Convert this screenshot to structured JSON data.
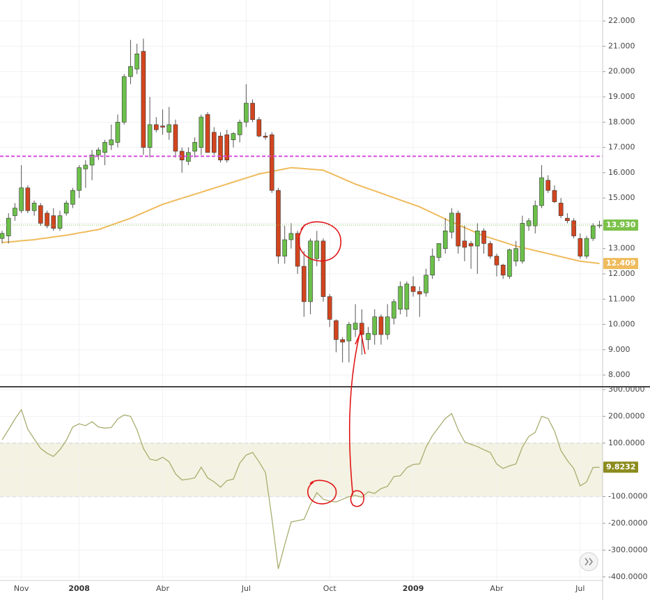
{
  "chart_data": [
    {
      "type": "candlestick",
      "categories": [
        null,
        null,
        null,
        "Nov",
        null,
        null,
        null,
        null,
        null,
        null,
        null,
        null,
        "2008",
        null,
        null,
        null,
        null,
        null,
        null,
        null,
        null,
        null,
        null,
        null,
        null,
        "Abr",
        null,
        null,
        null,
        null,
        null,
        null,
        null,
        null,
        null,
        null,
        null,
        null,
        "Jul",
        null,
        null,
        null,
        null,
        null,
        null,
        null,
        null,
        null,
        null,
        null,
        null,
        "Oct",
        null,
        null,
        null,
        null,
        null,
        null,
        null,
        null,
        null,
        null,
        null,
        null,
        "2009",
        null,
        null,
        null,
        null,
        null,
        null,
        null,
        null,
        null,
        null,
        null,
        null,
        "Abr",
        null,
        null,
        null,
        null,
        null,
        null,
        null,
        null,
        null,
        null,
        null,
        null,
        "Jul",
        null,
        null,
        null
      ],
      "open": [
        13.4,
        13.5,
        14.3,
        14.5,
        15.4,
        14.5,
        14.7,
        14.4,
        14.3,
        13.8,
        14.4,
        14.75,
        15.3,
        16.15,
        16.3,
        16.7,
        16.8,
        17.1,
        17.2,
        18.0,
        19.8,
        20.1,
        20.8,
        17.0,
        17.9,
        17.85,
        17.6,
        17.9,
        16.85,
        16.45,
        16.85,
        17.0,
        18.3,
        17.6,
        17.45,
        17.5,
        17.3,
        17.5,
        18.0,
        18.75,
        18.1,
        17.45,
        17.5,
        15.3,
        12.7,
        13.35,
        13.6,
        12.3,
        10.9,
        12.6,
        13.3,
        11.1,
        10.15,
        9.4,
        9.35,
        9.8,
        10.05,
        9.4,
        9.6,
        10.3,
        9.6,
        10.25,
        10.6,
        10.6,
        11.5,
        11.3,
        11.25,
        11.95,
        12.65,
        13.0,
        13.65,
        14.4,
        13.3,
        13.2,
        13.1,
        13.7,
        13.2,
        12.7,
        12.35,
        11.9,
        12.5,
        12.5,
        13.9,
        13.9,
        14.7,
        15.7,
        15.3,
        14.8,
        14.2,
        14.1,
        13.4,
        12.7,
        13.4,
        13.9
      ],
      "high": [
        13.7,
        14.4,
        14.8,
        16.3,
        15.5,
        14.9,
        14.8,
        14.5,
        14.6,
        14.5,
        14.9,
        15.4,
        16.3,
        16.5,
        16.9,
        17.0,
        17.3,
        17.9,
        18.3,
        19.9,
        21.25,
        21.1,
        21.3,
        19.0,
        18.2,
        18.5,
        18.6,
        18.1,
        17.0,
        17.0,
        17.4,
        18.3,
        18.4,
        17.8,
        17.6,
        17.7,
        17.6,
        18.1,
        19.5,
        18.9,
        18.2,
        17.6,
        17.6,
        15.4,
        13.9,
        14.0,
        13.7,
        12.9,
        13.4,
        13.7,
        13.4,
        11.2,
        10.2,
        9.5,
        10.1,
        10.8,
        10.6,
        9.9,
        10.6,
        10.4,
        10.8,
        11.0,
        11.7,
        11.7,
        11.9,
        11.5,
        12.2,
        13.0,
        13.2,
        14.2,
        14.6,
        14.5,
        13.9,
        13.3,
        14.0,
        13.8,
        13.3,
        12.8,
        12.4,
        13.0,
        13.3,
        14.3,
        14.2,
        14.9,
        16.3,
        15.9,
        15.5,
        15.0,
        14.4,
        14.2,
        13.6,
        13.5,
        14.0,
        14.1
      ],
      "low": [
        13.2,
        13.2,
        14.1,
        14.4,
        14.4,
        14.3,
        13.9,
        13.8,
        13.7,
        13.7,
        14.3,
        14.6,
        15.0,
        15.4,
        15.7,
        16.5,
        16.3,
        16.9,
        17.0,
        17.9,
        19.5,
        19.9,
        16.7,
        16.6,
        17.6,
        17.5,
        17.3,
        16.6,
        16.0,
        16.3,
        16.6,
        16.7,
        16.8,
        16.7,
        16.4,
        16.4,
        17.0,
        17.2,
        17.8,
        18.0,
        17.4,
        17.3,
        15.2,
        12.4,
        12.4,
        13.0,
        12.0,
        10.3,
        10.4,
        12.3,
        10.9,
        9.9,
        8.9,
        8.5,
        8.5,
        9.5,
        8.8,
        9.0,
        9.2,
        9.2,
        9.4,
        10.0,
        10.4,
        10.3,
        11.1,
        10.3,
        11.1,
        11.8,
        12.5,
        12.8,
        13.4,
        12.8,
        12.5,
        12.2,
        12.0,
        12.8,
        12.6,
        11.9,
        11.8,
        11.8,
        12.3,
        12.4,
        13.7,
        13.6,
        14.6,
        15.2,
        14.8,
        14.2,
        14.0,
        13.4,
        12.6,
        12.6,
        13.3,
        13.8
      ],
      "close": [
        13.6,
        14.2,
        14.6,
        15.4,
        14.5,
        14.8,
        14.0,
        13.9,
        13.8,
        14.3,
        14.8,
        15.3,
        16.2,
        16.3,
        16.7,
        16.9,
        17.2,
        17.3,
        18.0,
        19.8,
        20.2,
        20.7,
        17.0,
        17.9,
        17.7,
        17.8,
        17.9,
        16.85,
        16.5,
        16.8,
        17.2,
        18.2,
        16.8,
        16.8,
        16.5,
        16.5,
        17.55,
        18.0,
        18.75,
        18.1,
        17.45,
        17.4,
        15.3,
        12.7,
        13.35,
        13.6,
        12.3,
        10.9,
        13.3,
        13.3,
        11.1,
        10.2,
        9.4,
        9.3,
        10.0,
        10.05,
        9.6,
        9.65,
        10.3,
        9.6,
        10.3,
        10.9,
        11.5,
        11.6,
        11.3,
        11.2,
        11.95,
        12.7,
        13.2,
        13.7,
        14.4,
        13.1,
        13.05,
        13.1,
        13.7,
        13.2,
        12.7,
        12.35,
        11.95,
        12.95,
        13.0,
        14.0,
        14.1,
        14.7,
        15.8,
        15.3,
        14.85,
        14.3,
        14.1,
        13.5,
        12.7,
        13.4,
        13.9,
        13.93
      ],
      "up_color": "#6cc04a",
      "down_color": "#d2451e",
      "ma": {
        "color": "#efbb5c",
        "values": [
          13.24,
          13.26,
          13.28,
          13.31,
          13.33,
          13.35,
          13.39,
          13.42,
          13.46,
          13.49,
          13.53,
          13.57,
          13.62,
          13.66,
          13.71,
          13.75,
          13.84,
          13.93,
          14.02,
          14.11,
          14.2,
          14.31,
          14.42,
          14.53,
          14.64,
          14.75,
          14.83,
          14.91,
          14.99,
          15.07,
          15.15,
          15.23,
          15.31,
          15.39,
          15.47,
          15.55,
          15.63,
          15.71,
          15.79,
          15.87,
          15.95,
          16.0,
          16.05,
          16.1,
          16.15,
          16.2,
          16.18,
          16.16,
          16.14,
          16.12,
          16.1,
          15.99,
          15.88,
          15.77,
          15.66,
          15.55,
          15.46,
          15.37,
          15.28,
          15.19,
          15.1,
          15.01,
          14.92,
          14.83,
          14.74,
          14.65,
          14.53,
          14.41,
          14.29,
          14.17,
          14.05,
          13.94,
          13.83,
          13.72,
          13.61,
          13.5,
          13.42,
          13.34,
          13.26,
          13.18,
          13.1,
          13.04,
          12.98,
          12.92,
          12.86,
          12.8,
          12.74,
          12.68,
          12.62,
          12.56,
          12.5,
          12.47,
          12.44,
          12.409
        ],
        "last_label": {
          "value": 12.409,
          "label": "12.409"
        }
      },
      "last_price": {
        "value": 13.93,
        "label": "13.930",
        "color": "#7cc24a"
      },
      "reference_lines": [
        {
          "value": 16.65,
          "color": "#d84fe0"
        }
      ],
      "ylim": [
        7.59,
        22.83
      ],
      "yticks": [
        {
          "value": 8,
          "label": "8.000"
        },
        {
          "value": 9,
          "label": "9.000"
        },
        {
          "value": 10,
          "label": "10.000"
        },
        {
          "value": 11,
          "label": "11.000"
        },
        {
          "value": 12,
          "label": "12.000"
        },
        {
          "value": 13,
          "label": "13.000"
        },
        {
          "value": 14,
          "label": "14.000"
        },
        {
          "value": 15,
          "label": "15.000"
        },
        {
          "value": 16,
          "label": "16.000"
        },
        {
          "value": 17,
          "label": "17.000"
        },
        {
          "value": 18,
          "label": "18.000"
        },
        {
          "value": 19,
          "label": "19.000"
        },
        {
          "value": 20,
          "label": "20.000"
        },
        {
          "value": 21,
          "label": "21.000"
        },
        {
          "value": 22,
          "label": "22.000"
        }
      ],
      "grid": true
    },
    {
      "type": "line",
      "color": "#a9ad6e",
      "values": [
        112,
        150,
        190,
        225,
        152,
        115,
        80,
        62,
        50,
        75,
        110,
        160,
        172,
        165,
        180,
        160,
        156,
        158,
        190,
        205,
        200,
        150,
        80,
        40,
        35,
        47,
        30,
        -15,
        -38,
        -35,
        -30,
        10,
        -30,
        -45,
        -65,
        -40,
        -35,
        25,
        55,
        65,
        30,
        -10,
        -180,
        -370,
        -280,
        -195,
        -190,
        -185,
        -130,
        -85,
        -110,
        -117,
        -120,
        -110,
        -100,
        -96,
        -102,
        -82,
        -88,
        -70,
        -62,
        -25,
        -22,
        8,
        20,
        22,
        85,
        128,
        160,
        192,
        210,
        150,
        105,
        95,
        87,
        75,
        65,
        22,
        5,
        15,
        22,
        85,
        125,
        140,
        200,
        192,
        145,
        72,
        35,
        5,
        -60,
        -45,
        9,
        9.8232
      ],
      "band": {
        "upper": 100,
        "lower": -100,
        "color": "#f4f2e2"
      },
      "last_label": {
        "value": 9.8232,
        "label": "9.8232",
        "color": "#8c8c1e"
      },
      "ylim": [
        -413.5,
        307.8
      ],
      "yticks": [
        {
          "value": 300,
          "label": "300.0000"
        },
        {
          "value": 200,
          "label": "200.0000"
        },
        {
          "value": 100,
          "label": "100.0000"
        },
        {
          "value": 0,
          "label": "0.0000"
        },
        {
          "value": -100,
          "label": "-100.0000"
        },
        {
          "value": -200,
          "label": "-200.0000"
        },
        {
          "value": -300,
          "label": "-300.0000"
        },
        {
          "value": -400,
          "label": "-400.0000"
        }
      ],
      "grid": true
    }
  ]
}
